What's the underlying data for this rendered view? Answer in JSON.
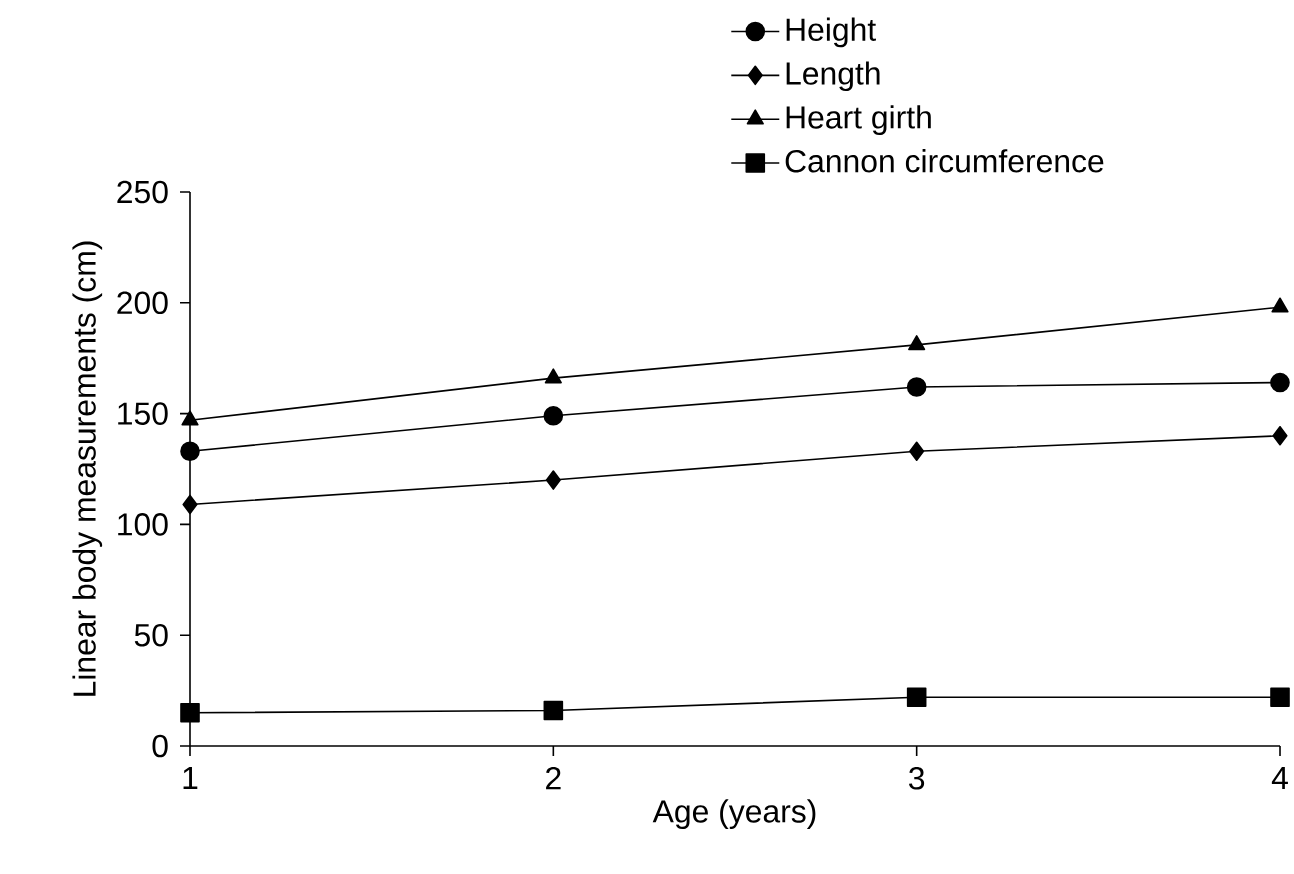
{
  "chart_data": {
    "type": "line",
    "xlabel": "Age (years)",
    "ylabel": "Linear body measurements (cm)",
    "x": [
      1,
      2,
      3,
      4
    ],
    "xlim": [
      1,
      4
    ],
    "xticks": [
      1,
      2,
      3,
      4
    ],
    "ylim": [
      0,
      250
    ],
    "yticks": [
      0,
      50,
      100,
      150,
      200,
      250
    ],
    "grid": false,
    "legend": "top right",
    "line_style": "solid",
    "series": [
      {
        "name": "Height",
        "color": "#000000",
        "marker": "circle",
        "values": [
          133,
          149,
          162,
          164
        ]
      },
      {
        "name": "Length",
        "color": "#000000",
        "marker": "diamond",
        "values": [
          109,
          120,
          133,
          140
        ]
      },
      {
        "name": "Heart girth",
        "color": "#000000",
        "marker": "triangle",
        "values": [
          147,
          166,
          181,
          198
        ]
      },
      {
        "name": "Cannon circumference",
        "color": "#000000",
        "marker": "square",
        "values": [
          15,
          16,
          22,
          22
        ]
      }
    ]
  }
}
